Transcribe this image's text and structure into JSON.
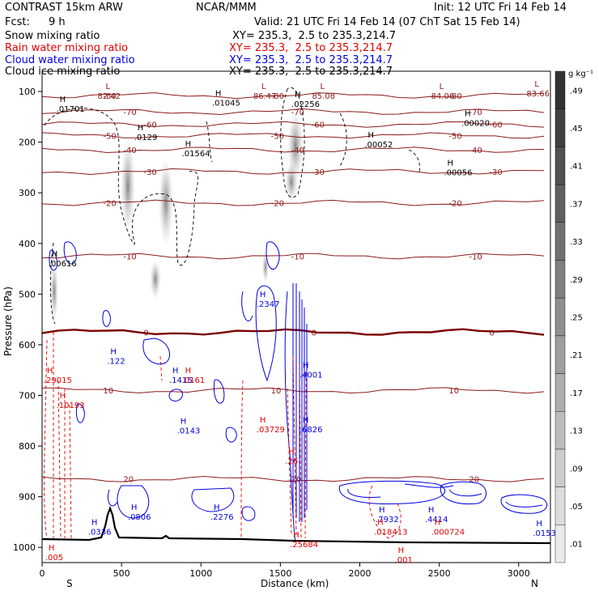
{
  "header": {
    "model": "CONTRAST 15km ARW",
    "org": "NCAR/MMM",
    "init": "Init: 12 UTC Fri 14 Feb 14",
    "fcst_label": "Fcst:",
    "fcst_value": "9 h",
    "valid": "Valid: 21 UTC Fri 14 Feb 14 (07 ChT Sat 15 Feb 14)"
  },
  "legend": {
    "rows": [
      {
        "name": "Snow mixing ratio",
        "xsec": "",
        "color": "#000000"
      },
      {
        "name": "Rain water mixing ratio",
        "xsec": "XY= 235.3,  2.5 to 235.3,214.7",
        "color": "#e00000"
      },
      {
        "name": "Cloud water mixing ratio",
        "xsec": "XY= 235.3,  2.5 to 235.3,214.7",
        "color": "#0000e0"
      },
      {
        "name": "Cloud ice mixing ratio",
        "xsec": "XY= 235.3,  2.5 to 235.3,214.7",
        "color": "#000000"
      }
    ],
    "xsec_top": "XY= 235.3,  2.5 to 235.3,214.7"
  },
  "chart_data": {
    "type": "contour",
    "xlabel": "Distance (km)",
    "ylabel": "Pressure (hPa)",
    "xlim": [
      0,
      3200
    ],
    "ylim": [
      1030,
      60
    ],
    "x_ticks": [
      0,
      500,
      1000,
      1500,
      2000,
      2500,
      3000
    ],
    "y_ticks": [
      100,
      200,
      300,
      400,
      500,
      600,
      700,
      800,
      900,
      1000
    ],
    "x_end_labels": {
      "left": "S",
      "right": "N"
    },
    "colorbar": {
      "unit": "g kg⁻¹",
      "levels": [
        ".01",
        ".05",
        ".09",
        ".13",
        ".17",
        ".21",
        ".25",
        ".29",
        ".33",
        ".37",
        ".41",
        ".45",
        ".49"
      ]
    },
    "temperature_contours": [
      {
        "label": "-80",
        "p": 108
      },
      {
        "label": "-70",
        "p": 140
      },
      {
        "label": "-60",
        "p": 165
      },
      {
        "label": "-50",
        "p": 187
      },
      {
        "label": "-40",
        "p": 215
      },
      {
        "label": "-30",
        "p": 258
      },
      {
        "label": "-20",
        "p": 320
      },
      {
        "label": "-10",
        "p": 425
      },
      {
        "label": "0",
        "p": 575,
        "bold": true
      },
      {
        "label": "10",
        "p": 690
      },
      {
        "label": "20",
        "p": 865
      }
    ],
    "snow_maxima": [
      {
        "text": ".01701",
        "x": 110,
        "p": 140
      },
      {
        "text": ".0129",
        "x": 600,
        "p": 196
      },
      {
        "text": ".01564",
        "x": 900,
        "p": 228
      },
      {
        "text": ".01045",
        "x": 1090,
        "p": 128
      },
      {
        "text": ".02256",
        "x": 1590,
        "p": 130
      },
      {
        "text": ".00052",
        "x": 2050,
        "p": 210
      },
      {
        "text": ".00020",
        "x": 2660,
        "p": 168
      },
      {
        "text": ".00056",
        "x": 2550,
        "p": 265
      },
      {
        "text": ".00616",
        "x": 60,
        "p": 445
      }
    ],
    "ice_maxima": [
      {
        "text": "82.42",
        "x": 400,
        "p": 108
      },
      {
        "text": "86.47",
        "x": 1380,
        "p": 108
      },
      {
        "text": "85.08",
        "x": 1750,
        "p": 108
      },
      {
        "text": "84.06",
        "x": 2500,
        "p": 108
      },
      {
        "text": "83.66",
        "x": 3100,
        "p": 103
      }
    ],
    "cloud_water_maxima": [
      {
        "text": ".2347",
        "x": 1370,
        "p": 525
      },
      {
        "text": ".122",
        "x": 430,
        "p": 638
      },
      {
        "text": ".1415",
        "x": 820,
        "p": 675
      },
      {
        "text": ".0143",
        "x": 870,
        "p": 775
      },
      {
        "text": ".6826",
        "x": 1640,
        "p": 773
      },
      {
        "text": ".4001",
        "x": 1640,
        "p": 665
      },
      {
        "text": ".0806",
        "x": 560,
        "p": 945
      },
      {
        "text": ".0336",
        "x": 310,
        "p": 975
      },
      {
        "text": ".2276",
        "x": 1080,
        "p": 945
      },
      {
        "text": ".4414",
        "x": 2430,
        "p": 950
      },
      {
        "text": ".7932",
        "x": 2120,
        "p": 950
      },
      {
        "text": ".0153",
        "x": 3110,
        "p": 977
      }
    ],
    "rain_maxima": [
      {
        "text": ".29015",
        "x": 30,
        "p": 675
      },
      {
        "text": ".10193",
        "x": 110,
        "p": 725
      },
      {
        "text": ".0161",
        "x": 900,
        "p": 675
      },
      {
        "text": ".03729",
        "x": 1370,
        "p": 773
      },
      {
        "text": ".26",
        "x": 1550,
        "p": 835
      },
      {
        "text": ".018413",
        "x": 2110,
        "p": 975
      },
      {
        "text": ".000724",
        "x": 2470,
        "p": 975
      },
      {
        "text": ".25684",
        "x": 1580,
        "p": 1000
      },
      {
        "text": ".005",
        "x": 40,
        "p": 1025
      },
      {
        "text": ".001",
        "x": 2240,
        "p": 1030
      }
    ]
  }
}
